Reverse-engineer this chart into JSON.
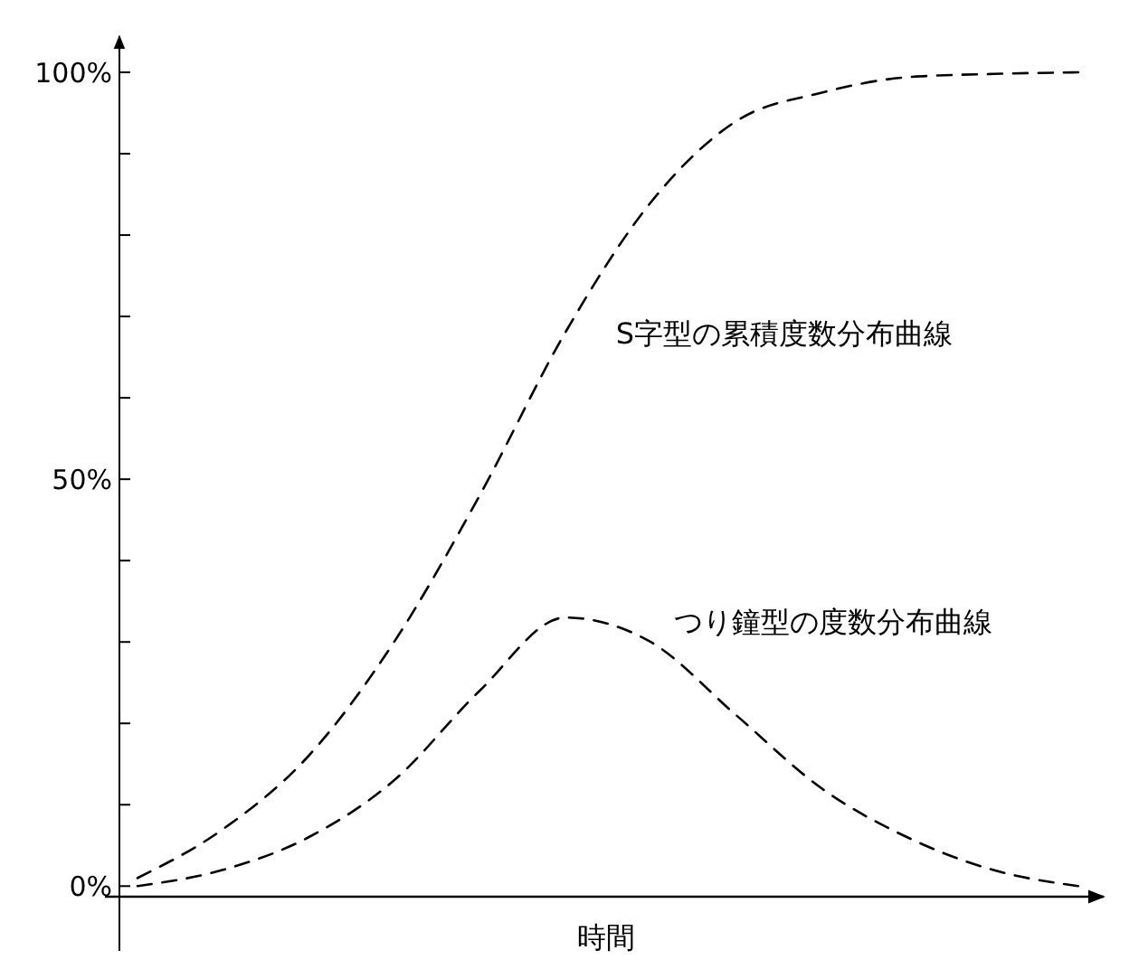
{
  "chart_data": {
    "type": "line",
    "xlabel": "時間",
    "categories": [
      null,
      null,
      null,
      null,
      null,
      null,
      null,
      null,
      null,
      null,
      null,
      null
    ],
    "series": [
      {
        "name": "S字型の累積度数分布曲線",
        "color": "#000000",
        "values": [
          1,
          7,
          16,
          30,
          48,
          68,
          84,
          94,
          97.5,
          99.4,
          99.8,
          100
        ]
      },
      {
        "name": "つり鐘型の度数分布曲線",
        "color": "#000000",
        "values": [
          0,
          2,
          6,
          13,
          24,
          33,
          30,
          21,
          12,
          6,
          2,
          0
        ]
      }
    ],
    "ylim": [
      -1.3,
      104
    ],
    "yticks": [
      {
        "value": 0,
        "label": "0%"
      },
      {
        "value": 10,
        "label": null
      },
      {
        "value": 20,
        "label": null
      },
      {
        "value": 30,
        "label": null
      },
      {
        "value": 40,
        "label": null
      },
      {
        "value": 50,
        "label": "50%"
      },
      {
        "value": 60,
        "label": null
      },
      {
        "value": 70,
        "label": null
      },
      {
        "value": 80,
        "label": null
      },
      {
        "value": 90,
        "label": null
      },
      {
        "value": 100,
        "label": "100%"
      }
    ],
    "line_style": "dashed",
    "marker": "none",
    "grid": false
  }
}
